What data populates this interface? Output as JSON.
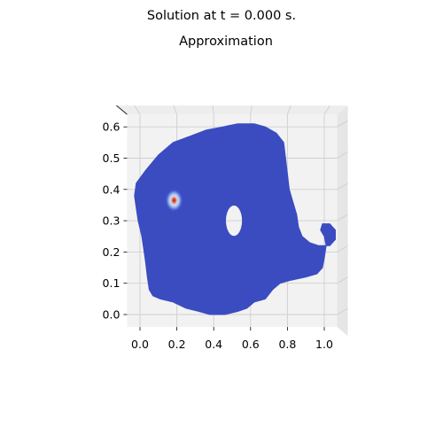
{
  "figure": {
    "suptitle": "Solution at t = 0.000 s."
  },
  "chart_data": {
    "type": "heatmap",
    "title": "Approximation",
    "xlabel": "",
    "ylabel": "",
    "xlim": [
      -0.07,
      1.07
    ],
    "ylim": [
      -0.04,
      0.64
    ],
    "x_ticks": [
      "0.0",
      "0.2",
      "0.4",
      "0.6",
      "0.8",
      "1.0"
    ],
    "y_ticks": [
      "0.0",
      "0.1",
      "0.2",
      "0.3",
      "0.4",
      "0.5",
      "0.6"
    ],
    "view": "3d-top-down",
    "grid": true,
    "colormap": "coolwarm",
    "colors": {
      "low": "#3b4cc0",
      "high": "#b40426",
      "pane": "#f2f2f2",
      "gridline": "#cfcfcf"
    },
    "domain_outline": [
      [
        -0.02,
        0.42
      ],
      [
        0.03,
        0.46
      ],
      [
        0.1,
        0.51
      ],
      [
        0.18,
        0.55
      ],
      [
        0.27,
        0.57
      ],
      [
        0.36,
        0.59
      ],
      [
        0.45,
        0.6
      ],
      [
        0.53,
        0.61
      ],
      [
        0.62,
        0.61
      ],
      [
        0.68,
        0.6
      ],
      [
        0.74,
        0.58
      ],
      [
        0.78,
        0.55
      ],
      [
        0.79,
        0.5
      ],
      [
        0.8,
        0.45
      ],
      [
        0.81,
        0.4
      ],
      [
        0.83,
        0.36
      ],
      [
        0.85,
        0.32
      ],
      [
        0.86,
        0.28
      ],
      [
        0.88,
        0.25
      ],
      [
        0.92,
        0.23
      ],
      [
        0.97,
        0.22
      ],
      [
        1.03,
        0.22
      ],
      [
        1.06,
        0.24
      ],
      [
        1.06,
        0.27
      ],
      [
        1.03,
        0.29
      ],
      [
        0.99,
        0.29
      ],
      [
        0.98,
        0.27
      ],
      [
        1.0,
        0.25
      ],
      [
        1.01,
        0.22
      ],
      [
        1.0,
        0.18
      ],
      [
        0.99,
        0.15
      ],
      [
        0.96,
        0.13
      ],
      [
        0.9,
        0.12
      ],
      [
        0.82,
        0.11
      ],
      [
        0.76,
        0.1
      ],
      [
        0.72,
        0.08
      ],
      [
        0.68,
        0.05
      ],
      [
        0.62,
        0.04
      ],
      [
        0.58,
        0.02
      ],
      [
        0.53,
        0.01
      ],
      [
        0.46,
        0.0
      ],
      [
        0.38,
        0.0
      ],
      [
        0.32,
        0.01
      ],
      [
        0.25,
        0.02
      ],
      [
        0.18,
        0.04
      ],
      [
        0.11,
        0.05
      ],
      [
        0.07,
        0.06
      ],
      [
        0.05,
        0.08
      ],
      [
        0.04,
        0.12
      ],
      [
        0.03,
        0.17
      ],
      [
        0.02,
        0.21
      ],
      [
        0.01,
        0.25
      ],
      [
        -0.01,
        0.3
      ],
      [
        -0.02,
        0.34
      ],
      [
        -0.03,
        0.38
      ]
    ],
    "hole": {
      "cx": 0.51,
      "cy": 0.3,
      "rx": 0.046,
      "ry": 0.05
    },
    "hotspot": {
      "x": 0.185,
      "y": 0.365,
      "peak": 1.0,
      "width": 0.03
    }
  }
}
